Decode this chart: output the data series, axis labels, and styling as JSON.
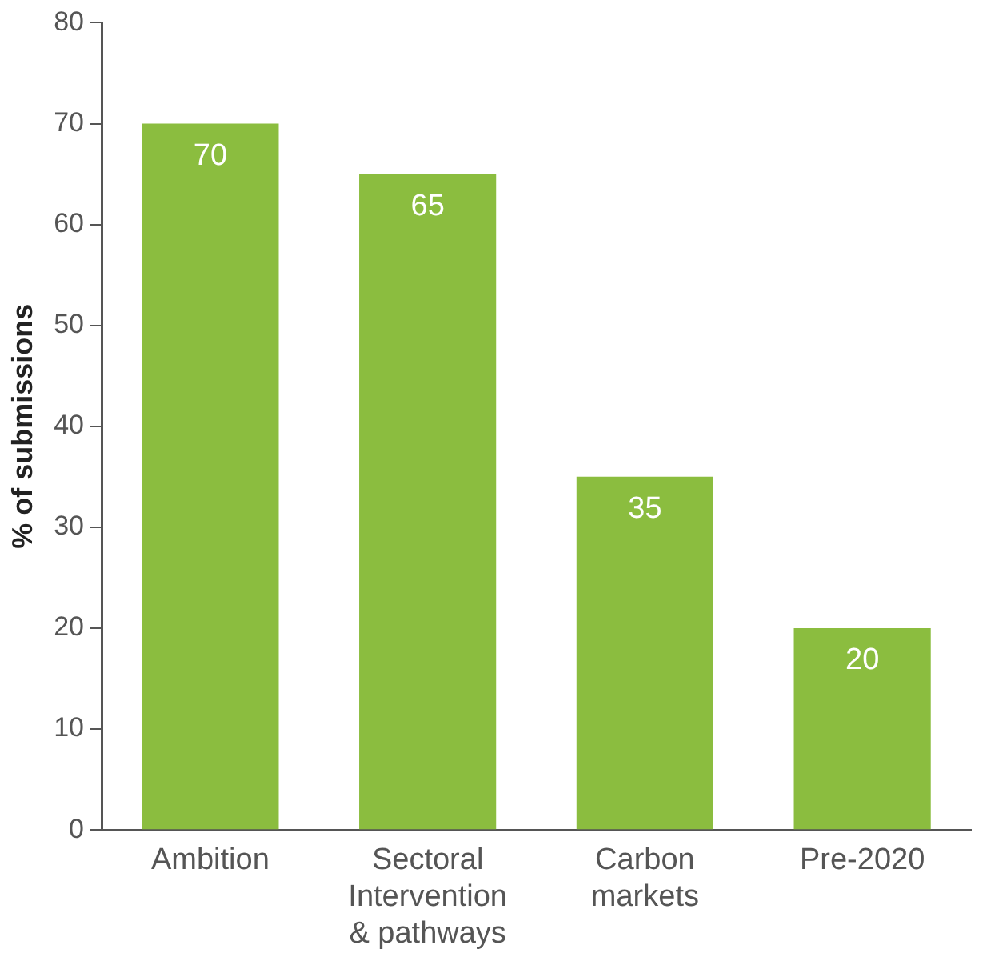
{
  "chart_data": {
    "type": "bar",
    "ylabel": "% of submissions",
    "categories": [
      "Ambition",
      "Sectoral Intervention & pathways",
      "Carbon markets",
      "Pre-2020"
    ],
    "values": [
      70,
      65,
      35,
      20
    ],
    "color": "#8bbd3f",
    "ylim": [
      0,
      80
    ],
    "yticks": [
      0,
      10,
      20,
      30,
      40,
      50,
      60,
      70,
      80
    ],
    "grid": false,
    "legend": false,
    "data_labels": true
  }
}
